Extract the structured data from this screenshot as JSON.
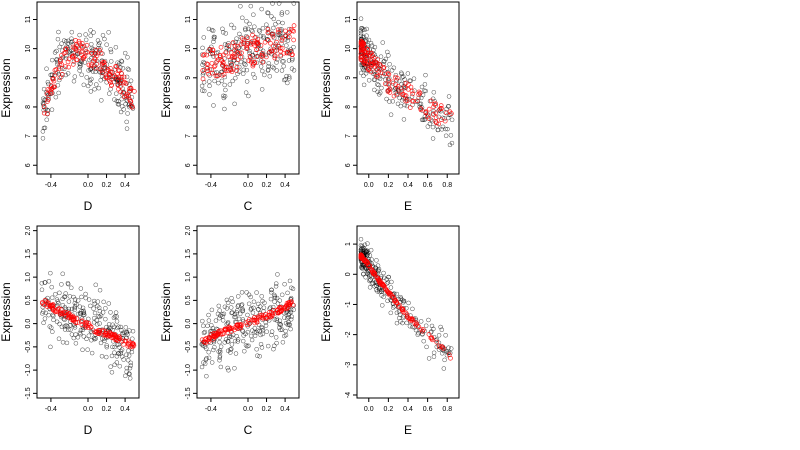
{
  "chart_data": [
    {
      "type": "scatter",
      "xlabel": "D",
      "ylabel": "Expression",
      "xlim": [
        -0.55,
        0.55
      ],
      "ylim": [
        5.7,
        11.6
      ],
      "xticks": [
        -0.4,
        0.0,
        0.2,
        0.4
      ],
      "xtick_labels": [
        "-0.4",
        "0.0",
        "0.2",
        "0.4"
      ],
      "yticks": [
        6,
        7,
        8,
        9,
        10,
        11
      ],
      "ytick_labels": [
        "6",
        "7",
        "8",
        "9",
        "10",
        "11"
      ],
      "point_colors": {
        "observed": "#000000",
        "fitted": "#ff0000"
      },
      "fitted_curve": [
        [
          -0.5,
          7.5
        ],
        [
          -0.4,
          8.6
        ],
        [
          -0.3,
          9.4
        ],
        [
          -0.2,
          9.8
        ],
        [
          -0.1,
          9.9
        ],
        [
          0.0,
          9.8
        ],
        [
          0.1,
          9.6
        ],
        [
          0.2,
          9.3
        ],
        [
          0.3,
          9.0
        ],
        [
          0.4,
          8.6
        ],
        [
          0.5,
          8.3
        ]
      ],
      "spread": 0.6
    },
    {
      "type": "scatter",
      "xlabel": "C",
      "ylabel": "Expression",
      "xlim": [
        -0.55,
        0.55
      ],
      "ylim": [
        5.7,
        11.6
      ],
      "xticks": [
        -0.4,
        0.0,
        0.2,
        0.4
      ],
      "xtick_labels": [
        "-0.4",
        "0.0",
        "0.2",
        "0.4"
      ],
      "yticks": [
        6,
        7,
        8,
        9,
        10,
        11
      ],
      "ytick_labels": [
        "6",
        "7",
        "8",
        "9",
        "10",
        "11"
      ],
      "point_colors": {
        "observed": "#000000",
        "fitted": "#ff0000"
      },
      "fitted_curve": [
        [
          -0.5,
          9.3
        ],
        [
          -0.3,
          9.6
        ],
        [
          -0.1,
          9.8
        ],
        [
          0.1,
          10.0
        ],
        [
          0.3,
          10.2
        ],
        [
          0.5,
          10.3
        ]
      ],
      "spread": 0.8
    },
    {
      "type": "scatter",
      "xlabel": "E",
      "ylabel": "Expression",
      "xlim": [
        -0.12,
        0.92
      ],
      "ylim": [
        5.7,
        11.6
      ],
      "xticks": [
        0.0,
        0.2,
        0.4,
        0.6,
        0.8
      ],
      "xtick_labels": [
        "0.0",
        "0.2",
        "0.4",
        "0.6",
        "0.8"
      ],
      "yticks": [
        6,
        7,
        8,
        9,
        10,
        11
      ],
      "ytick_labels": [
        "6",
        "7",
        "8",
        "9",
        "10",
        "11"
      ],
      "point_colors": {
        "observed": "#000000",
        "fitted": "#ff0000"
      },
      "fitted_curve": [
        [
          -0.08,
          10.0
        ],
        [
          0.0,
          9.6
        ],
        [
          0.1,
          9.2
        ],
        [
          0.2,
          8.9
        ],
        [
          0.3,
          8.6
        ],
        [
          0.4,
          8.4
        ],
        [
          0.5,
          8.2
        ],
        [
          0.6,
          8.0
        ],
        [
          0.7,
          7.8
        ],
        [
          0.8,
          7.6
        ],
        [
          0.85,
          7.5
        ]
      ],
      "spread": 0.55
    },
    {
      "type": "scatter",
      "xlabel": "D",
      "ylabel": "Expression",
      "xlim": [
        -0.55,
        0.55
      ],
      "ylim": [
        -1.6,
        2.1
      ],
      "xticks": [
        -0.4,
        0.0,
        0.2,
        0.4
      ],
      "xtick_labels": [
        "-0.4",
        "0.0",
        "0.2",
        "0.4"
      ],
      "yticks": [
        -1.5,
        -1.0,
        -0.5,
        0.0,
        0.5,
        1.0,
        1.5,
        2.0
      ],
      "ytick_labels": [
        "-1.5",
        "-1.0",
        "-0.5",
        "0.0",
        "0.5",
        "1.0",
        "1.5",
        "2.0"
      ],
      "point_colors": {
        "observed": "#000000",
        "fitted": "#ff0000"
      },
      "fitted_curve": [
        [
          -0.5,
          0.5
        ],
        [
          -0.3,
          0.25
        ],
        [
          -0.1,
          0.05
        ],
        [
          0.1,
          -0.15
        ],
        [
          0.3,
          -0.3
        ],
        [
          0.5,
          -0.5
        ]
      ],
      "spread": 0.45
    },
    {
      "type": "scatter",
      "xlabel": "C",
      "ylabel": "Expression",
      "xlim": [
        -0.55,
        0.55
      ],
      "ylim": [
        -1.6,
        2.1
      ],
      "xticks": [
        -0.4,
        0.0,
        0.2,
        0.4
      ],
      "xtick_labels": [
        "-0.4",
        "0.0",
        "0.2",
        "0.4"
      ],
      "yticks": [
        -1.5,
        -1.0,
        -0.5,
        0.0,
        0.5,
        1.0,
        1.5,
        2.0
      ],
      "ytick_labels": [
        "-1.5",
        "-1.0",
        "-0.5",
        "0.0",
        "0.5",
        "1.0",
        "1.5",
        "2.0"
      ],
      "point_colors": {
        "observed": "#000000",
        "fitted": "#ff0000"
      },
      "fitted_curve": [
        [
          -0.5,
          -0.4
        ],
        [
          -0.3,
          -0.2
        ],
        [
          -0.1,
          -0.05
        ],
        [
          0.1,
          0.1
        ],
        [
          0.3,
          0.25
        ],
        [
          0.5,
          0.45
        ]
      ],
      "spread": 0.45
    },
    {
      "type": "scatter",
      "xlabel": "E",
      "ylabel": "Expression",
      "xlim": [
        -0.12,
        0.92
      ],
      "ylim": [
        -4.1,
        1.6
      ],
      "xticks": [
        0.0,
        0.2,
        0.4,
        0.6,
        0.8
      ],
      "xtick_labels": [
        "0.0",
        "0.2",
        "0.4",
        "0.6",
        "0.8"
      ],
      "yticks": [
        -4,
        -3,
        -2,
        -1,
        0,
        1
      ],
      "ytick_labels": [
        "-4",
        "-3",
        "-2",
        "-1",
        "0",
        "1"
      ],
      "point_colors": {
        "observed": "#000000",
        "fitted": "#ff0000"
      },
      "fitted_curve": [
        [
          -0.08,
          0.6
        ],
        [
          0.0,
          0.3
        ],
        [
          0.1,
          -0.2
        ],
        [
          0.2,
          -0.6
        ],
        [
          0.3,
          -1.0
        ],
        [
          0.4,
          -1.4
        ],
        [
          0.5,
          -1.7
        ],
        [
          0.6,
          -2.0
        ],
        [
          0.7,
          -2.3
        ],
        [
          0.8,
          -2.6
        ],
        [
          0.85,
          -2.8
        ]
      ],
      "spread": 0.35
    }
  ]
}
